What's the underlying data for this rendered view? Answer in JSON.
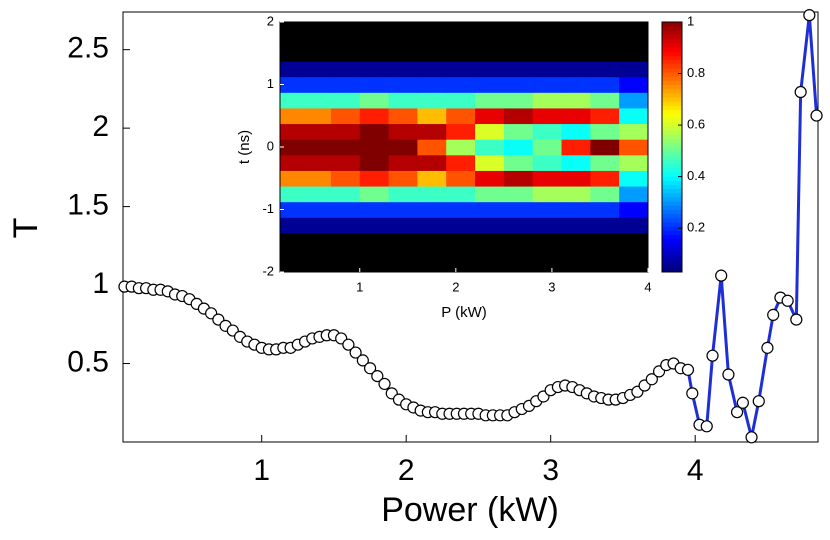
{
  "chart_data": [
    {
      "type": "scatter-line",
      "xlabel": "Power (kW)",
      "ylabel": "T",
      "xlim": [
        0.04,
        4.85
      ],
      "ylim": [
        0,
        2.74
      ],
      "xticks": [
        1,
        2,
        3,
        4
      ],
      "yticks": [
        0.5,
        1,
        1.5,
        2,
        2.5
      ],
      "series": [
        {
          "color": "#000000",
          "line": false,
          "x": [
            0.05,
            0.1,
            0.15,
            0.2,
            0.25,
            0.3,
            0.35,
            0.4,
            0.45,
            0.5,
            0.55,
            0.6,
            0.65,
            0.7,
            0.75,
            0.8,
            0.85,
            0.9,
            0.95,
            1.0,
            1.05,
            1.1,
            1.15,
            1.2,
            1.25,
            1.3,
            1.35,
            1.4,
            1.45,
            1.5,
            1.55,
            1.6,
            1.65,
            1.7,
            1.75,
            1.8,
            1.85,
            1.9,
            1.95,
            2.0,
            2.05,
            2.1,
            2.15,
            2.2,
            2.25,
            2.3,
            2.35,
            2.4,
            2.45,
            2.5,
            2.55,
            2.6,
            2.65,
            2.7,
            2.75,
            2.8,
            2.85,
            2.9,
            2.95,
            3.0,
            3.05,
            3.1,
            3.15,
            3.2,
            3.25,
            3.3,
            3.35,
            3.4,
            3.45,
            3.5,
            3.55,
            3.6,
            3.65,
            3.7,
            3.75,
            3.8,
            3.85
          ],
          "values": [
            0.99,
            0.99,
            0.98,
            0.98,
            0.97,
            0.97,
            0.96,
            0.94,
            0.93,
            0.91,
            0.88,
            0.85,
            0.82,
            0.78,
            0.74,
            0.71,
            0.67,
            0.64,
            0.62,
            0.6,
            0.59,
            0.59,
            0.6,
            0.6,
            0.62,
            0.64,
            0.66,
            0.67,
            0.68,
            0.68,
            0.66,
            0.62,
            0.57,
            0.52,
            0.47,
            0.42,
            0.37,
            0.31,
            0.27,
            0.24,
            0.22,
            0.2,
            0.19,
            0.19,
            0.18,
            0.18,
            0.18,
            0.18,
            0.18,
            0.18,
            0.17,
            0.17,
            0.17,
            0.17,
            0.19,
            0.21,
            0.23,
            0.26,
            0.29,
            0.33,
            0.35,
            0.36,
            0.35,
            0.33,
            0.31,
            0.29,
            0.28,
            0.27,
            0.27,
            0.28,
            0.3,
            0.32,
            0.36,
            0.4,
            0.45,
            0.49,
            0.5
          ]
        },
        {
          "color": "#1f2fd6",
          "line": true,
          "x": [
            3.9,
            3.95,
            3.98,
            4.03,
            4.08,
            4.12,
            4.18,
            4.23,
            4.29,
            4.33,
            4.39,
            4.44,
            4.5,
            4.54,
            4.59,
            4.64,
            4.7,
            4.73,
            4.79,
            4.84
          ],
          "values": [
            0.47,
            0.46,
            0.31,
            0.11,
            0.1,
            0.55,
            1.06,
            0.43,
            0.19,
            0.25,
            0.03,
            0.26,
            0.6,
            0.81,
            0.92,
            0.9,
            0.78,
            2.23,
            2.72,
            2.08
          ]
        }
      ]
    },
    {
      "type": "heatmap",
      "xlabel": "P (kW)",
      "ylabel": "t (ns)",
      "xlim": [
        0.17,
        4
      ],
      "ylim": [
        -2,
        2
      ],
      "xticks": [
        1,
        2,
        3,
        4
      ],
      "yticks": [
        -2,
        -1,
        0,
        1,
        2
      ],
      "x": [
        0.25,
        0.55,
        0.85,
        1.15,
        1.45,
        1.75,
        2.05,
        2.35,
        2.65,
        2.95,
        3.25,
        3.55,
        3.85
      ],
      "y": [
        -2,
        -1.75,
        -1.5,
        -1.25,
        -1,
        -0.75,
        -0.5,
        -0.25,
        0,
        0.25,
        0.5,
        0.75,
        1,
        1.25,
        1.5,
        1.75,
        2
      ],
      "z": [
        [
          0,
          0,
          0,
          0,
          0,
          0,
          0,
          0,
          0,
          0,
          0,
          0,
          0
        ],
        [
          0,
          0,
          0,
          0,
          0,
          0,
          0,
          0,
          0,
          0,
          0,
          0,
          0
        ],
        [
          0,
          0,
          0,
          0,
          0,
          0,
          0,
          0,
          0,
          0,
          0,
          0,
          0
        ],
        [
          0.05,
          0.05,
          0.05,
          0.05,
          0.05,
          0.05,
          0.05,
          0.05,
          0.05,
          0.05,
          0.05,
          0.05,
          0.05
        ],
        [
          0.2,
          0.2,
          0.2,
          0.2,
          0.2,
          0.2,
          0.2,
          0.2,
          0.2,
          0.2,
          0.2,
          0.2,
          0.15
        ],
        [
          0.45,
          0.45,
          0.45,
          0.5,
          0.45,
          0.45,
          0.45,
          0.5,
          0.5,
          0.55,
          0.55,
          0.5,
          0.3
        ],
        [
          0.75,
          0.75,
          0.8,
          0.85,
          0.8,
          0.7,
          0.8,
          0.9,
          0.95,
          0.9,
          0.9,
          0.85,
          0.4
        ],
        [
          0.95,
          0.95,
          0.95,
          1,
          0.95,
          0.95,
          0.85,
          0.6,
          0.5,
          0.45,
          0.4,
          0.5,
          0.55
        ],
        [
          1,
          1,
          1,
          1,
          1,
          0.8,
          0.55,
          0.45,
          0.4,
          0.5,
          0.85,
          1,
          0.8
        ],
        [
          0.95,
          0.95,
          0.95,
          1,
          0.95,
          0.95,
          0.85,
          0.6,
          0.5,
          0.45,
          0.4,
          0.5,
          0.55
        ],
        [
          0.75,
          0.75,
          0.8,
          0.85,
          0.8,
          0.7,
          0.8,
          0.9,
          0.95,
          0.9,
          0.9,
          0.85,
          0.4
        ],
        [
          0.45,
          0.45,
          0.45,
          0.5,
          0.45,
          0.45,
          0.45,
          0.5,
          0.5,
          0.55,
          0.55,
          0.5,
          0.3
        ],
        [
          0.2,
          0.2,
          0.2,
          0.2,
          0.2,
          0.2,
          0.2,
          0.2,
          0.2,
          0.2,
          0.2,
          0.2,
          0.15
        ],
        [
          0.05,
          0.05,
          0.05,
          0.05,
          0.05,
          0.05,
          0.05,
          0.05,
          0.05,
          0.05,
          0.05,
          0.05,
          0.05
        ],
        [
          0,
          0,
          0,
          0,
          0,
          0,
          0,
          0,
          0,
          0,
          0,
          0,
          0
        ],
        [
          0,
          0,
          0,
          0,
          0,
          0,
          0,
          0,
          0,
          0,
          0,
          0,
          0
        ],
        [
          0,
          0,
          0,
          0,
          0,
          0,
          0,
          0,
          0,
          0,
          0,
          0,
          0
        ]
      ],
      "colormap": "jet",
      "clim": [
        0.03,
        1
      ],
      "cticks": [
        0.2,
        0.4,
        0.6,
        0.8,
        1
      ]
    }
  ]
}
